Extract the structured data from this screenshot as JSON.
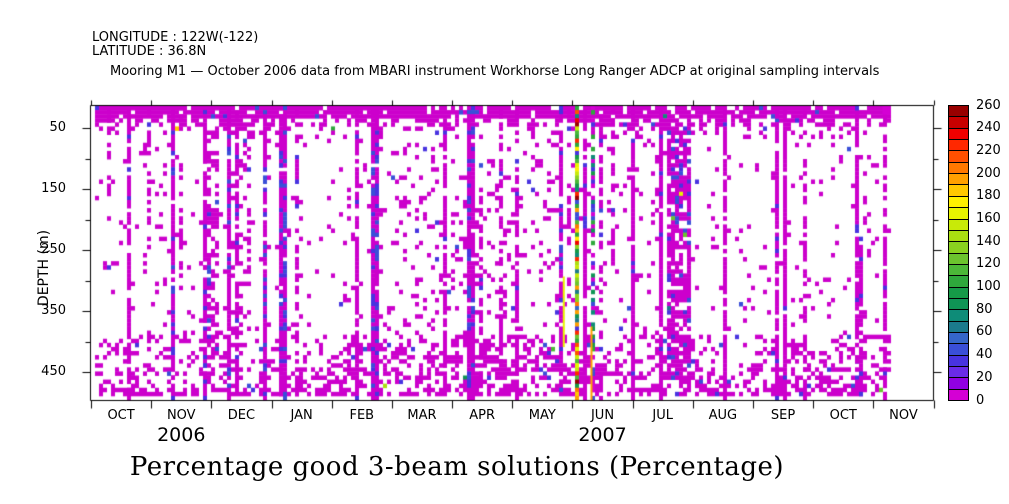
{
  "header": {
    "longitude": "LONGITUDE : 122W(-122)",
    "latitude": "LATITUDE : 36.8N",
    "title": "Mooring M1 — October 2006 data from MBARI instrument Workhorse Long Ranger ADCP at original sampling intervals"
  },
  "chart_data": {
    "type": "heatmap",
    "caption": "Percentage good 3-beam solutions (Percentage)",
    "x_axis": {
      "months": [
        "OCT",
        "NOV",
        "DEC",
        "JAN",
        "FEB",
        "MAR",
        "APR",
        "MAY",
        "JUN",
        "JUL",
        "AUG",
        "SEP",
        "OCT",
        "NOV"
      ],
      "years": [
        {
          "label": "2006",
          "month_index": 1
        },
        {
          "label": "2007",
          "month_index": 8
        }
      ]
    },
    "y_axis": {
      "label": "DEPTH (m)",
      "major_ticks": [
        50,
        150,
        250,
        350,
        450
      ],
      "minor_ticks": [
        100,
        200,
        300,
        400
      ],
      "top_depth": 13,
      "bottom_depth": 496
    },
    "colorbar": {
      "min": 0,
      "max": 260,
      "tick_step": 20,
      "tick_labels": [
        "0",
        "20",
        "40",
        "60",
        "80",
        "100",
        "120",
        "140",
        "160",
        "180",
        "200",
        "220",
        "240",
        "260"
      ],
      "segment_colors": [
        "#D400D4",
        "#9100E3",
        "#6A2BE8",
        "#4833E0",
        "#3A4FD8",
        "#3566C9",
        "#1B7A8C",
        "#0E8C78",
        "#0F9455",
        "#169A48",
        "#2FA83C",
        "#4CB838",
        "#6CC42E",
        "#8AD21F",
        "#AADF11",
        "#C8EA08",
        "#E8F400",
        "#FFF000",
        "#FFC800",
        "#FFA000",
        "#FF7800",
        "#FF5000",
        "#FF2800",
        "#F00000",
        "#C80000",
        "#980000"
      ]
    },
    "value_colors": {
      "near_zero": "#CC00CC",
      "low_blue": "#4833E0",
      "low_blue2": "#3A4FD8"
    },
    "pattern": {
      "seed": 20061001,
      "data_start_month": 0.066,
      "data_end_month": 13.27,
      "regions": [
        [
          0.066,
          13.27,
          0.0,
          0.03,
          0.88,
          0.03
        ],
        [
          0.066,
          13.27,
          0.03,
          0.06,
          0.45,
          0.03
        ],
        [
          0.066,
          13.27,
          0.06,
          0.1,
          0.18,
          0.03
        ],
        [
          0.066,
          1.0,
          0.1,
          0.8,
          0.045,
          0.03
        ],
        [
          1.0,
          2.64,
          0.1,
          0.8,
          0.085,
          0.04
        ],
        [
          1.81,
          2.11,
          0.0,
          1.0,
          0.5,
          0.08
        ],
        [
          2.28,
          2.61,
          0.0,
          1.0,
          0.28,
          0.06
        ],
        [
          2.64,
          4.02,
          0.1,
          0.8,
          0.045,
          0.03
        ],
        [
          4.02,
          5.02,
          0.1,
          0.8,
          0.08,
          0.04
        ],
        [
          5.02,
          7.79,
          0.1,
          0.78,
          0.13,
          0.05
        ],
        [
          7.79,
          9.29,
          0.1,
          0.78,
          0.07,
          0.04
        ],
        [
          9.55,
          9.95,
          0.0,
          1.0,
          0.75,
          0.12
        ],
        [
          9.29,
          9.55,
          0.1,
          1.0,
          0.12,
          0.04
        ],
        [
          9.95,
          11.03,
          0.1,
          0.8,
          0.05,
          0.03
        ],
        [
          11.03,
          13.27,
          0.1,
          0.78,
          0.06,
          0.03
        ],
        [
          0.066,
          2.97,
          0.78,
          0.97,
          0.22,
          0.03
        ],
        [
          2.97,
          3.97,
          0.78,
          0.97,
          0.18,
          0.03
        ],
        [
          3.97,
          7.79,
          0.78,
          0.97,
          0.4,
          0.05
        ],
        [
          7.79,
          9.29,
          0.78,
          0.97,
          0.3,
          0.05
        ],
        [
          9.29,
          10.12,
          0.78,
          0.97,
          0.35,
          0.05
        ],
        [
          10.12,
          11.12,
          0.78,
          0.97,
          0.15,
          0.03
        ],
        [
          11.12,
          13.27,
          0.78,
          0.97,
          0.3,
          0.03
        ],
        [
          0.066,
          13.27,
          0.9,
          0.97,
          0.35,
          0.03
        ],
        [
          0.066,
          13.27,
          0.97,
          1.0,
          0.55,
          0.03
        ]
      ],
      "stripes": [
        [
          0.28,
          4,
          0.0,
          0.3,
          0.5,
          "m"
        ],
        [
          0.615,
          4,
          0.0,
          1.0,
          0.85,
          "m"
        ],
        [
          0.95,
          4,
          0.0,
          0.55,
          0.45,
          "m"
        ],
        [
          1.313,
          5,
          0.0,
          1.0,
          0.9,
          "b"
        ],
        [
          1.446,
          4,
          0.0,
          0.6,
          0.5,
          "m"
        ],
        [
          1.861,
          4,
          0.0,
          1.0,
          0.8,
          "m"
        ],
        [
          2.277,
          4,
          0.0,
          1.0,
          0.9,
          "b"
        ],
        [
          2.376,
          4,
          0.0,
          1.0,
          0.7,
          "m"
        ],
        [
          2.858,
          4,
          0.0,
          1.0,
          0.9,
          "b"
        ],
        [
          3.157,
          6,
          0.0,
          1.0,
          0.95,
          "b"
        ],
        [
          3.357,
          4,
          0.0,
          1.0,
          0.55,
          "m"
        ],
        [
          4.354,
          4,
          0.0,
          1.0,
          0.85,
          "m"
        ],
        [
          4.62,
          7,
          0.0,
          1.0,
          0.95,
          "b"
        ],
        [
          4.752,
          4,
          0.5,
          1.0,
          0.5,
          "m"
        ],
        [
          5.833,
          4,
          0.0,
          1.0,
          0.8,
          "m"
        ],
        [
          6.265,
          7,
          0.0,
          1.0,
          0.95,
          "b"
        ],
        [
          6.464,
          4,
          0.3,
          1.0,
          0.5,
          "m"
        ],
        [
          6.747,
          4,
          0.0,
          1.0,
          0.6,
          "m"
        ],
        [
          7.013,
          4,
          0.0,
          1.0,
          0.75,
          "m"
        ],
        [
          7.744,
          5,
          0.0,
          1.0,
          0.85,
          "b"
        ],
        [
          7.877,
          4,
          0.0,
          0.4,
          0.5,
          "m"
        ],
        [
          8.027,
          4,
          0.0,
          1.0,
          1.0,
          "rainbow"
        ],
        [
          8.176,
          4,
          0.0,
          1.0,
          0.9,
          "m"
        ],
        [
          8.293,
          3,
          0.0,
          1.0,
          0.7,
          "mix"
        ],
        [
          8.409,
          4,
          0.0,
          1.0,
          0.5,
          "m"
        ],
        [
          8.658,
          4,
          0.0,
          0.55,
          0.6,
          "m"
        ],
        [
          8.991,
          4,
          0.0,
          1.0,
          0.85,
          "m"
        ],
        [
          9.423,
          4,
          0.0,
          1.0,
          0.9,
          "m"
        ],
        [
          10.519,
          4,
          0.0,
          1.0,
          0.9,
          "m"
        ],
        [
          11.367,
          4,
          0.0,
          1.0,
          0.9,
          "m"
        ],
        [
          11.483,
          5,
          0.0,
          1.0,
          0.95,
          "m"
        ],
        [
          11.815,
          4,
          0.0,
          1.0,
          0.5,
          "m"
        ],
        [
          12.663,
          4,
          0.0,
          1.0,
          0.75,
          "m"
        ],
        [
          12.779,
          4,
          0.45,
          1.0,
          0.8,
          "m"
        ],
        [
          13.178,
          5,
          0.0,
          1.0,
          0.8,
          "m"
        ]
      ],
      "accents": [
        {
          "kind": "vline",
          "m": 7.84,
          "f0": 0.58,
          "f1": 0.82,
          "color_index": 16,
          "w": 2
        },
        {
          "kind": "vline",
          "m": 8.3,
          "f0": 0.75,
          "f1": 1.0,
          "color_index": 19,
          "w": 2
        },
        {
          "kind": "blob",
          "m": 13.15,
          "w": 8,
          "f0": 0.0,
          "f1": 0.03,
          "color_index": 0
        }
      ]
    }
  }
}
